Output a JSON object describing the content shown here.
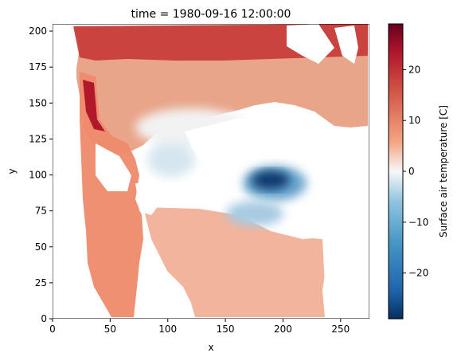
{
  "chart_data": {
    "type": "heatmap",
    "title": "time = 1980-09-16 12:00:00",
    "xlabel": "x",
    "ylabel": "y",
    "xlim": [
      0,
      275
    ],
    "ylim": [
      0,
      205
    ],
    "x_ticks": [
      0,
      50,
      100,
      150,
      200,
      250
    ],
    "y_ticks": [
      0,
      25,
      50,
      75,
      100,
      125,
      150,
      175,
      200
    ],
    "colorbar": {
      "label": "Surface air temperature [C]",
      "colormap": "RdBu_r",
      "vmin": -29,
      "vmax": 29,
      "ticks": [
        -20,
        -10,
        0,
        10,
        20
      ],
      "colors": {
        "low": "#053061",
        "mid": "#f7f7f7",
        "high": "#67001f"
      }
    },
    "approximate_field": {
      "description_units": "degrees C, sampled on a coarse grid (rows from y=205 down to y=0, columns x=0..275 step 25)",
      "grid_x": [
        0,
        25,
        50,
        75,
        100,
        125,
        150,
        175,
        200,
        225,
        250,
        275
      ],
      "grid_y": [
        205,
        185,
        165,
        145,
        125,
        105,
        85,
        65,
        45,
        25,
        5
      ],
      "values": [
        [
          null,
          null,
          null,
          20,
          19,
          18,
          17,
          16,
          17,
          18,
          20,
          24
        ],
        [
          null,
          null,
          18,
          17,
          15,
          14,
          13,
          12,
          13,
          14,
          16,
          20
        ],
        [
          null,
          22,
          14,
          13,
          11,
          9,
          8,
          6,
          8,
          10,
          14,
          18
        ],
        [
          null,
          20,
          12,
          10,
          6,
          3,
          2,
          1,
          null,
          5,
          10,
          16
        ],
        [
          null,
          null,
          14,
          10,
          2,
          -1,
          0,
          null,
          1,
          null,
          8,
          null
        ],
        [
          null,
          null,
          null,
          8,
          -3,
          -2,
          null,
          -12,
          -24,
          -10,
          null,
          null
        ],
        [
          null,
          null,
          null,
          6,
          4,
          null,
          -6,
          -10,
          -8,
          null,
          null,
          null
        ],
        [
          null,
          null,
          null,
          null,
          8,
          4,
          2,
          2,
          3,
          6,
          null,
          null
        ],
        [
          null,
          null,
          null,
          null,
          10,
          8,
          6,
          4,
          5,
          8,
          null,
          null
        ],
        [
          null,
          null,
          null,
          null,
          null,
          14,
          12,
          10,
          10,
          null,
          null,
          null
        ],
        [
          null,
          null,
          null,
          null,
          null,
          null,
          18,
          16,
          15,
          null,
          null,
          null
        ]
      ]
    }
  }
}
